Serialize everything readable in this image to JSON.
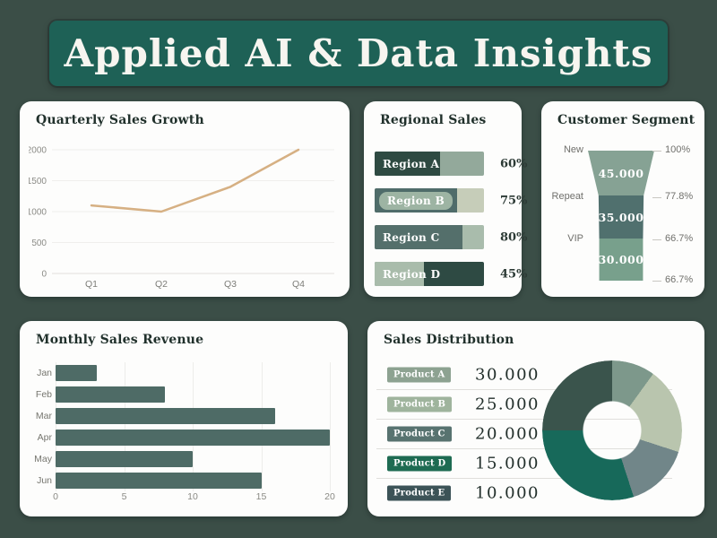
{
  "banner": {
    "title": "Applied AI & Data Insights"
  },
  "colors": {
    "background": "#3b4e47",
    "banner": "#1e6156",
    "panel": "#fdfdfc"
  },
  "chart_data": [
    {
      "id": "quarterly-sales-growth",
      "type": "line",
      "title": "Quarterly Sales Growth",
      "categories": [
        "Q1",
        "Q2",
        "Q3",
        "Q4"
      ],
      "values": [
        1100,
        1000,
        1400,
        2000
      ],
      "ylim": [
        0,
        2000
      ],
      "yticks": [
        0,
        500,
        1000,
        1500,
        2000
      ],
      "line_color": "#d6b083",
      "grid": true,
      "legend": "none"
    },
    {
      "id": "regional-sales",
      "type": "bar",
      "title": "Regional Sales",
      "orientation": "horizontal",
      "bars": [
        {
          "label": "Region A",
          "value": 60,
          "pct_label": "60%",
          "fill": "#2e4a42",
          "track": "#93a99b",
          "chip": null
        },
        {
          "label": "Region B",
          "value": 75,
          "pct_label": "75%",
          "fill": "#4f6c6a",
          "track": "#c6cdb9",
          "chip": "#9db4a3"
        },
        {
          "label": "Region C",
          "value": 80,
          "pct_label": "80%",
          "fill": "#546f6b",
          "track": "#a9bcac",
          "chip": null
        },
        {
          "label": "Region D",
          "value": 45,
          "pct_label": "45%",
          "fill": "#a9bcab",
          "track": "#2e4a43",
          "chip": null
        }
      ]
    },
    {
      "id": "customer-segment",
      "type": "funnel",
      "title": "Customer Segment",
      "stages": [
        {
          "label": "New",
          "value": "45.000",
          "pct": "100%",
          "color": "#86a294"
        },
        {
          "label": "Repeat",
          "value": "35.000",
          "pct": "77.8%",
          "color": "#50706e"
        },
        {
          "label": "VIP",
          "value": "30.000",
          "pct": "66.7%",
          "color": "#78a08c"
        }
      ],
      "final_pct": "66.7%"
    },
    {
      "id": "monthly-sales-revenue",
      "type": "bar",
      "title": "Monthly Sales Revenue",
      "orientation": "horizontal",
      "categories": [
        "Jan",
        "Feb",
        "Mar",
        "Apr",
        "May",
        "Jun"
      ],
      "values": [
        3,
        8,
        16,
        20,
        10,
        15
      ],
      "xlim": [
        0,
        20
      ],
      "xticks": [
        0,
        5,
        10,
        15,
        20
      ],
      "bar_color": "#4e6b66",
      "grid": true
    },
    {
      "id": "sales-distribution",
      "type": "pie",
      "title": "Sales Distribution",
      "items": [
        {
          "label": "Product A",
          "value": "30.000",
          "chip": "#8da291"
        },
        {
          "label": "Product B",
          "value": "25.000",
          "chip": "#9fb49d"
        },
        {
          "label": "Product C",
          "value": "20.000",
          "chip": "#587370"
        },
        {
          "label": "Product D",
          "value": "15.000",
          "chip": "#1e6b52"
        },
        {
          "label": "Product E",
          "value": "10.000",
          "chip": "#3c5357"
        }
      ],
      "donut_slices": [
        {
          "color": "#7d988b",
          "deg": 36,
          "share": "10%"
        },
        {
          "color": "#b9c5ae",
          "deg": 72,
          "share": "20%"
        },
        {
          "color": "#718689",
          "deg": 54,
          "share": "15%"
        },
        {
          "color": "#17695a",
          "deg": 108,
          "share": "30%"
        },
        {
          "color": "#3a544c",
          "deg": 90,
          "share": "25%"
        }
      ],
      "hole": true
    }
  ]
}
